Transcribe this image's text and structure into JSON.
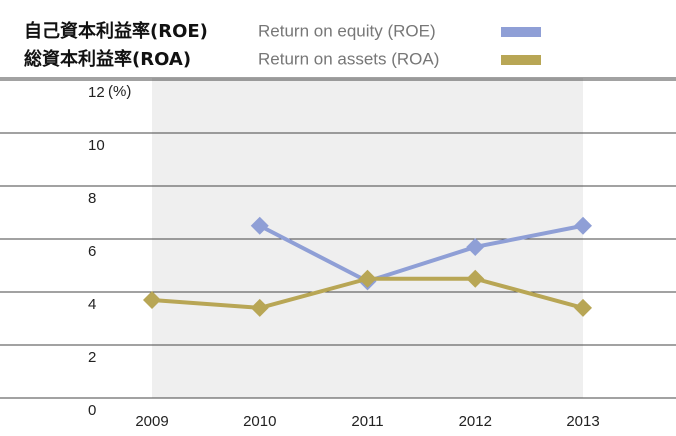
{
  "chart_data": {
    "type": "line",
    "categories": [
      "2009",
      "2010",
      "2011",
      "2012",
      "2013"
    ],
    "series": [
      {
        "label_ja": "自己資本利益率(ROE)",
        "name": "Return on equity (ROE)",
        "color": "#8f9fd6",
        "values": [
          null,
          6.5,
          4.4,
          5.7,
          6.5
        ]
      },
      {
        "label_ja": "総資本利益率(ROA)",
        "name": "Return on assets (ROA)",
        "color": "#b8a655",
        "values": [
          3.7,
          3.4,
          4.5,
          4.5,
          3.4
        ]
      }
    ],
    "y_unit": "(%)",
    "ylim": [
      0,
      12
    ],
    "yticks": [
      0,
      2,
      4,
      6,
      8,
      10,
      12
    ],
    "grid": true
  }
}
